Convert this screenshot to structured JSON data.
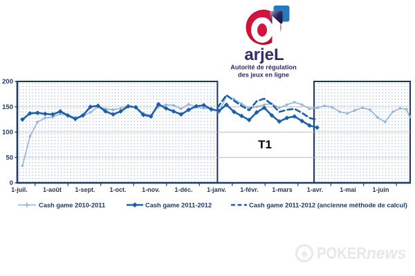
{
  "logo": {
    "letter": "a",
    "wordmark": "arjeL",
    "caption_line1": "Autorité de régulation",
    "caption_line2": "des jeux en ligne",
    "colors": {
      "circle_red": "#cf1339",
      "circle_red_dark": "#a50d2f",
      "square_dark": "#221c4e",
      "square_dark_light": "#514a7c",
      "square_blue": "#2e7cc3",
      "wordmark_color": "#352a63",
      "caption_color": "#2f2a64"
    }
  },
  "chart_data": {
    "type": "line",
    "title": "",
    "xlabel": "",
    "ylabel": "",
    "x_unit": "weeks since 1 July",
    "x_tick_labels": [
      "1-juil.",
      "1-août",
      "1-sept.",
      "1-oct.",
      "1-nov.",
      "1-déc.",
      "1-janv.",
      "1-févr.",
      "1-mars",
      "1-avr.",
      "1-mai",
      "1-juin"
    ],
    "y_ticks": [
      0,
      50,
      100,
      150,
      200
    ],
    "ylim": [
      0,
      200
    ],
    "grid": "horizontal-gray-plus-dotted-fill-inside-boxes",
    "legend_position": "bottom",
    "annotation": "T1",
    "highlight_boxes": [
      {
        "label": "period-jul-jan",
        "from_month": -0.05,
        "to_month": 6.05
      },
      {
        "label": "period-apr-jun",
        "from_month": 8.99,
        "to_month": 11.93
      }
    ],
    "series": [
      {
        "name": "Cash game 2010-2011",
        "color": "#8fb3da",
        "line_style": "solid",
        "line_width": 1.6,
        "marker": "plus-small-diamond",
        "points": [
          [
            0.5,
            34
          ],
          [
            1.5,
            92
          ],
          [
            2.5,
            120
          ],
          [
            3.5,
            128
          ],
          [
            4.5,
            130
          ],
          [
            5.5,
            136
          ],
          [
            6.5,
            133
          ],
          [
            7.5,
            129
          ],
          [
            8.5,
            132
          ],
          [
            9.5,
            139
          ],
          [
            10.5,
            150
          ],
          [
            11.5,
            146
          ],
          [
            12.5,
            144
          ],
          [
            13.5,
            147
          ],
          [
            14.5,
            152
          ],
          [
            15.5,
            149
          ],
          [
            16.5,
            137
          ],
          [
            17.5,
            133
          ],
          [
            18.5,
            150
          ],
          [
            19.5,
            154
          ],
          [
            20.5,
            153
          ],
          [
            21.5,
            146
          ],
          [
            22.5,
            155
          ],
          [
            23.5,
            150
          ],
          [
            24.5,
            147
          ],
          [
            25.5,
            146
          ],
          [
            26.5,
            139
          ],
          [
            27.5,
            171
          ],
          [
            28.5,
            165
          ],
          [
            29.5,
            156
          ],
          [
            30.5,
            147
          ],
          [
            31.5,
            150
          ],
          [
            32.5,
            154
          ],
          [
            33.5,
            156
          ],
          [
            34.5,
            148
          ],
          [
            35.5,
            154
          ],
          [
            36.5,
            159
          ],
          [
            37.5,
            154
          ],
          [
            38.5,
            146
          ],
          [
            39.5,
            148
          ],
          [
            40.5,
            152
          ],
          [
            41.5,
            149
          ],
          [
            42.5,
            140
          ],
          [
            43.5,
            137
          ],
          [
            44.5,
            143
          ],
          [
            45.5,
            148
          ],
          [
            46.5,
            144
          ],
          [
            47.5,
            129
          ],
          [
            48.5,
            120
          ],
          [
            49.5,
            140
          ],
          [
            50.5,
            147
          ],
          [
            51.3,
            145
          ],
          [
            51.8,
            130
          ]
        ]
      },
      {
        "name": "Cash game 2011-2012",
        "color": "#1b5fa8",
        "line_style": "solid",
        "line_width": 2.6,
        "marker": "diamond",
        "points": [
          [
            0.5,
            125
          ],
          [
            1.5,
            137
          ],
          [
            2.5,
            138
          ],
          [
            3.5,
            136
          ],
          [
            4.5,
            135
          ],
          [
            5.5,
            141
          ],
          [
            6.5,
            133
          ],
          [
            7.5,
            126
          ],
          [
            8.5,
            133
          ],
          [
            9.5,
            150
          ],
          [
            10.5,
            152
          ],
          [
            11.5,
            141
          ],
          [
            12.5,
            135
          ],
          [
            13.5,
            141
          ],
          [
            14.5,
            151
          ],
          [
            15.5,
            149
          ],
          [
            16.5,
            134
          ],
          [
            17.5,
            131
          ],
          [
            18.5,
            155
          ],
          [
            19.5,
            147
          ],
          [
            20.5,
            141
          ],
          [
            21.5,
            135
          ],
          [
            22.5,
            144
          ],
          [
            23.5,
            151
          ],
          [
            24.5,
            153
          ],
          [
            25.5,
            145
          ],
          [
            26.5,
            142
          ],
          [
            27.5,
            154
          ],
          [
            28.5,
            140
          ],
          [
            29.5,
            132
          ],
          [
            30.5,
            124
          ],
          [
            31.5,
            139
          ],
          [
            32.5,
            148
          ],
          [
            33.5,
            133
          ],
          [
            34.5,
            121
          ],
          [
            35.5,
            128
          ],
          [
            36.5,
            131
          ],
          [
            37.5,
            122
          ],
          [
            38.5,
            113
          ],
          [
            39.5,
            109
          ]
        ]
      },
      {
        "name": "Cash game 2011-2012 (ancienne méthode de calcul)",
        "color": "#1b5fa8",
        "line_style": "dashed",
        "line_width": 2.6,
        "marker": "none",
        "points": [
          [
            26.3,
            148
          ],
          [
            27.5,
            173
          ],
          [
            28.5,
            162
          ],
          [
            29.5,
            152
          ],
          [
            30.5,
            143
          ],
          [
            31.5,
            161
          ],
          [
            32.5,
            166
          ],
          [
            33.5,
            155
          ],
          [
            34.5,
            140
          ],
          [
            35.5,
            144
          ],
          [
            36.5,
            146
          ],
          [
            37.5,
            138
          ],
          [
            38.5,
            128
          ],
          [
            39.5,
            124
          ]
        ]
      }
    ],
    "colors": {
      "axis": "#1d3a66",
      "tick_label": "#1d3a66",
      "box_border": "#17375e",
      "box_dot_fill": "#a9c0dc",
      "gridline": "#c0c0c0",
      "annotation_color": "#000000"
    }
  },
  "watermark": {
    "brand_left": "POKER",
    "brand_right": "news",
    "spade_char": "♠",
    "color": "#e8e8e8"
  }
}
